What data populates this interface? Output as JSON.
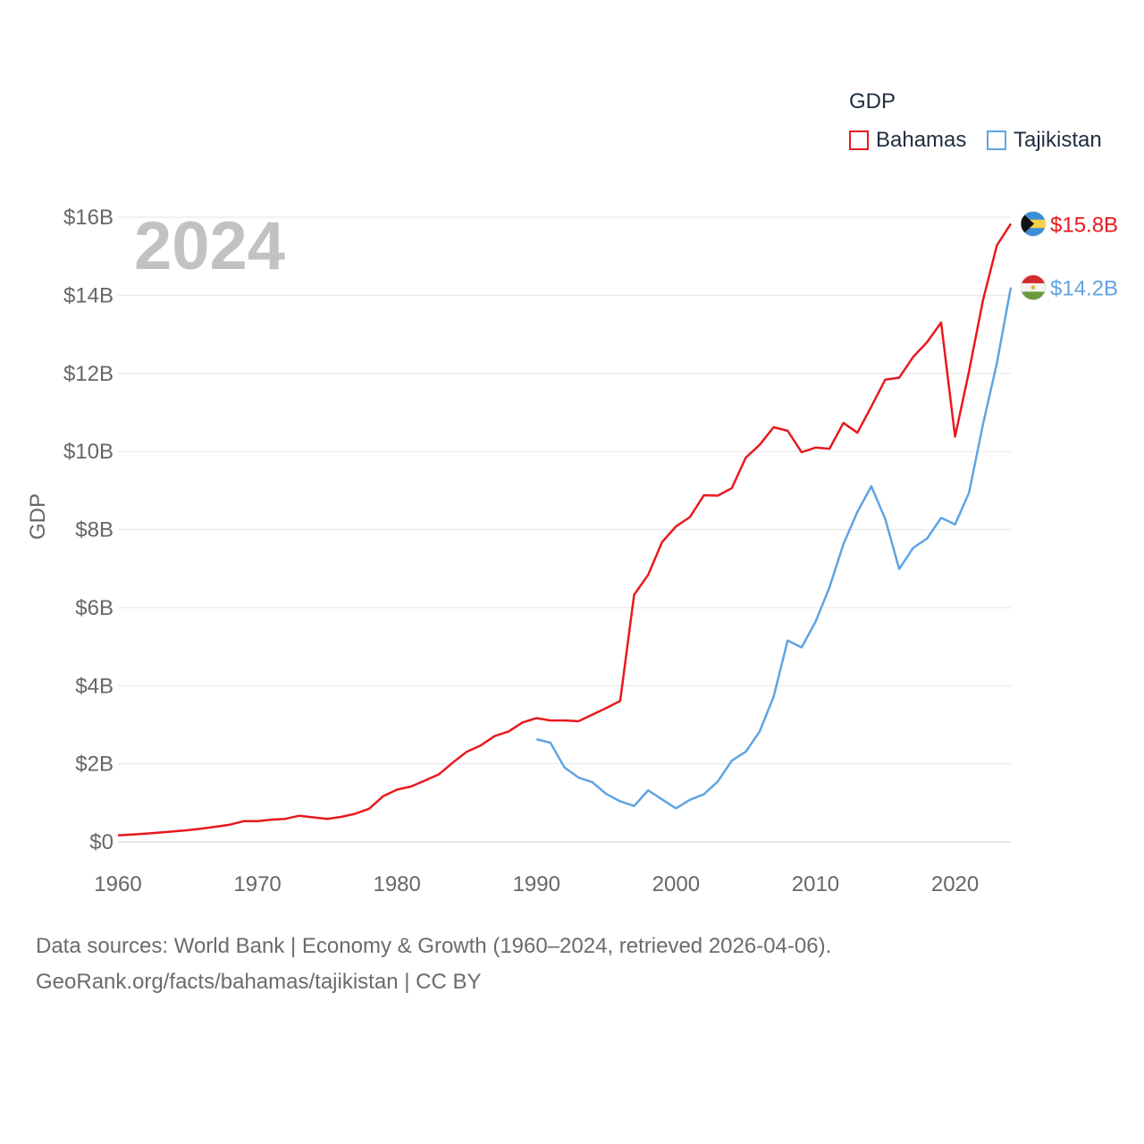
{
  "legend": {
    "title": "GDP",
    "items": [
      {
        "label": "Bahamas",
        "color": "#e8191e"
      },
      {
        "label": "Tajikistan",
        "color": "#5fa4e2"
      }
    ]
  },
  "year_label": "2024",
  "source": {
    "line1": "Data sources: World Bank | Economy & Growth (1960–2024, retrieved 2026-04-06).",
    "line2": "GeoRank.org/facts/bahamas/tajikistan | CC BY"
  },
  "chart_data": {
    "type": "line",
    "title": "",
    "xlabel": "",
    "ylabel": "GDP",
    "xlim": [
      1960,
      2024
    ],
    "ylim": [
      0,
      16
    ],
    "x_ticks": [
      1960,
      1970,
      1980,
      1990,
      2000,
      2010,
      2020
    ],
    "x_tick_labels": [
      "1960",
      "1970",
      "1980",
      "1990",
      "2000",
      "2010",
      "2020"
    ],
    "y_ticks": [
      0,
      2,
      4,
      6,
      8,
      10,
      12,
      14,
      16
    ],
    "y_tick_labels": [
      "$0",
      "$2B",
      "$4B",
      "$6B",
      "$8B",
      "$10B",
      "$12B",
      "$14B",
      "$16B"
    ],
    "grid": true,
    "series": [
      {
        "name": "Bahamas",
        "color": "#e8191e",
        "end_label": "$15.8B",
        "flag_icon": "bahamas-flag-icon",
        "x": [
          1960,
          1961,
          1962,
          1963,
          1964,
          1965,
          1966,
          1967,
          1968,
          1969,
          1970,
          1971,
          1972,
          1973,
          1974,
          1975,
          1976,
          1977,
          1978,
          1979,
          1980,
          1981,
          1982,
          1983,
          1984,
          1985,
          1986,
          1987,
          1988,
          1989,
          1990,
          1991,
          1992,
          1993,
          1994,
          1995,
          1996,
          1997,
          1998,
          1999,
          2000,
          2001,
          2002,
          2003,
          2004,
          2005,
          2006,
          2007,
          2008,
          2009,
          2010,
          2011,
          2012,
          2013,
          2014,
          2015,
          2016,
          2017,
          2018,
          2019,
          2020,
          2021,
          2022,
          2023,
          2024
        ],
        "values": [
          0.17,
          0.19,
          0.21,
          0.24,
          0.27,
          0.3,
          0.34,
          0.39,
          0.44,
          0.53,
          0.53,
          0.57,
          0.59,
          0.67,
          0.63,
          0.59,
          0.64,
          0.72,
          0.85,
          1.17,
          1.34,
          1.42,
          1.57,
          1.73,
          2.03,
          2.31,
          2.47,
          2.71,
          2.83,
          3.06,
          3.17,
          3.11,
          3.11,
          3.09,
          3.26,
          3.43,
          3.61,
          6.33,
          6.84,
          7.68,
          8.08,
          8.32,
          8.88,
          8.87,
          9.06,
          9.84,
          10.17,
          10.62,
          10.53,
          9.98,
          10.1,
          10.07,
          10.73,
          10.48,
          11.15,
          11.84,
          11.89,
          12.42,
          12.8,
          13.3,
          10.38,
          12.05,
          13.87,
          15.28,
          15.83
        ]
      },
      {
        "name": "Tajikistan",
        "color": "#5fa4e2",
        "end_label": "$14.2B",
        "flag_icon": "tajikistan-flag-icon",
        "x": [
          1990,
          1991,
          1992,
          1993,
          1994,
          1995,
          1996,
          1997,
          1998,
          1999,
          2000,
          2001,
          2002,
          2003,
          2004,
          2005,
          2006,
          2007,
          2008,
          2009,
          2010,
          2011,
          2012,
          2013,
          2014,
          2015,
          2016,
          2017,
          2018,
          2019,
          2020,
          2021,
          2022,
          2023,
          2024
        ],
        "values": [
          2.63,
          2.54,
          1.91,
          1.65,
          1.53,
          1.23,
          1.04,
          0.92,
          1.32,
          1.09,
          0.86,
          1.08,
          1.22,
          1.55,
          2.08,
          2.31,
          2.83,
          3.72,
          5.16,
          4.98,
          5.64,
          6.52,
          7.63,
          8.45,
          9.11,
          8.27,
          6.99,
          7.53,
          7.77,
          8.3,
          8.13,
          8.94,
          10.69,
          12.26,
          14.2
        ]
      }
    ]
  }
}
